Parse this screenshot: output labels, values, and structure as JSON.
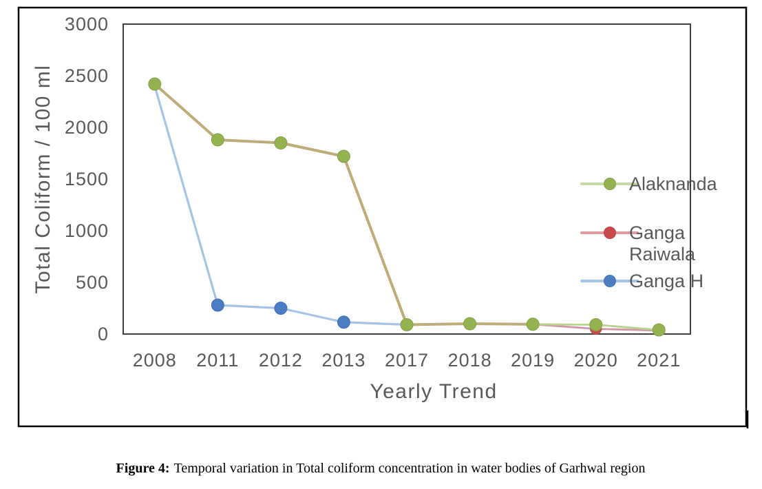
{
  "figure": {
    "caption": {
      "prefix": "Figure 4:",
      "text": "Temporal variation in Total coliform concentration in water bodies of Garhwal region"
    },
    "border_color": "#000000"
  },
  "chart_data": {
    "type": "line",
    "title": "",
    "xlabel": "Yearly Trend",
    "ylabel": "Total Coliform / 100 ml",
    "categories": [
      "2008",
      "2011",
      "2012",
      "2013",
      "2017",
      "2018",
      "2019",
      "2020",
      "2021"
    ],
    "y_ticks": [
      0,
      500,
      1000,
      1500,
      2000,
      2500,
      3000
    ],
    "ylim": [
      0,
      3000
    ],
    "grid": false,
    "legend_position": "right-inside",
    "text_color": "#595959",
    "plot_border_color": "#3F3F3F",
    "overlap_line_color": "#BFAC7B",
    "note": "Alaknanda and Ganga Raiwala lines overlap from 2008 through 2019 and render as one tan line; they diverge visibly at 2020-2021. Ganga H line starts under the 2008 marker and ends under the 2017 marker.",
    "series": [
      {
        "name": "Alaknanda",
        "values": [
          2420,
          1880,
          1850,
          1720,
          90,
          100,
          95,
          90,
          40
        ],
        "marker_color": "#94B350",
        "marker_edge_color": "#82A044",
        "line_color": "#B9D38A",
        "legend_line_color": "#C6DBA4",
        "legend_lines": [
          "Alaknanda"
        ],
        "visible_marker_years": [
          "2008",
          "2011",
          "2012",
          "2013",
          "2017",
          "2018",
          "2019",
          "2020",
          "2021"
        ]
      },
      {
        "name": "Ganga Raiwala",
        "values": [
          2420,
          1880,
          1850,
          1720,
          90,
          100,
          95,
          50,
          35
        ],
        "marker_color": "#C84B4B",
        "marker_edge_color": "#B84444",
        "line_color": "#D295A8",
        "legend_line_color": "#DE9AA0",
        "legend_lines": [
          "Ganga",
          "Raiwala"
        ],
        "visible_marker_years": [
          "2020"
        ]
      },
      {
        "name": "Ganga H",
        "values": [
          2400,
          280,
          250,
          115,
          90,
          null,
          null,
          null,
          null
        ],
        "marker_color": "#4B7CC4",
        "marker_edge_color": "#4371B5",
        "line_color": "#A6C3E8",
        "legend_line_color": "#A6C3E8",
        "legend_lines": [
          "Ganga H"
        ],
        "visible_marker_years": [
          "2011",
          "2012",
          "2013"
        ]
      }
    ]
  }
}
